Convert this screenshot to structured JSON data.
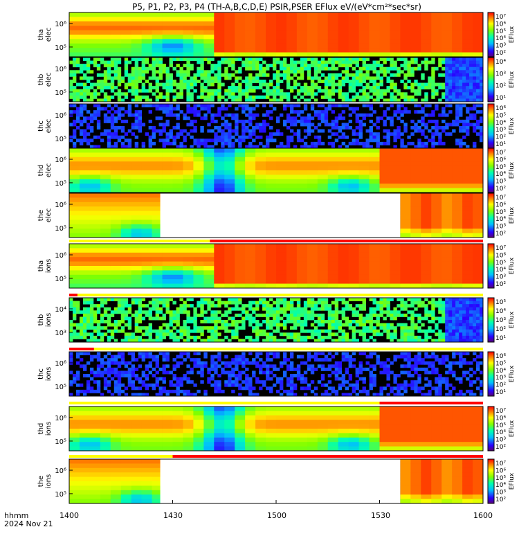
{
  "chart_data": {
    "type": "heatmap",
    "title": "P5, P1, P2, P3, P4 (TH-A,B,C,D,E) PSIR,PSER EFlux eV/(eV*cm²*sec*sr)",
    "x_ticks": [
      "1400",
      "1430",
      "1500",
      "1530",
      "1600"
    ],
    "x_label_line1": "hhmm",
    "x_label_line2": "2024 Nov 21",
    "colorbar_label": "EFlux",
    "panels": [
      {
        "id": "tha-elec",
        "label1": "tha",
        "label2": "elec",
        "y_ticks": [
          "10⁶",
          "10⁵"
        ],
        "cb_ticks": [
          "10⁷",
          "10⁶",
          "10⁵",
          "10⁴",
          "10³",
          "10²"
        ],
        "pattern": "smooth-left-sat-right",
        "gap": null,
        "split": 0.34
      },
      {
        "id": "thb-elec",
        "label1": "thb",
        "label2": "elec",
        "y_ticks": [
          "10⁶",
          "10⁵"
        ],
        "cb_ticks": [
          "10⁴",
          "10³",
          "10²",
          "10¹"
        ],
        "pattern": "noise-cyan",
        "gap": null,
        "split": 0.91
      },
      {
        "id": "thc-elec",
        "label1": "thc",
        "label2": "elec",
        "y_ticks": [
          "10⁶",
          "10⁵"
        ],
        "cb_ticks": [
          "10⁶",
          "10⁵",
          "10⁴",
          "10³",
          "10²",
          "10¹"
        ],
        "pattern": "noise-purple",
        "gap": null,
        "split": 1.0
      },
      {
        "id": "thd-elec",
        "label1": "thd",
        "label2": "elec",
        "y_ticks": [
          "10⁶",
          "10⁵"
        ],
        "cb_ticks": [
          "10⁷",
          "10⁶",
          "10⁵",
          "10⁴",
          "10³",
          "10²"
        ],
        "pattern": "smooth-bubble",
        "gap": null,
        "split": 0.75
      },
      {
        "id": "the-elec",
        "label1": "the",
        "label2": "elec",
        "y_ticks": [
          "10⁶",
          "10⁵"
        ],
        "cb_ticks": [
          "10⁷",
          "10⁶",
          "10⁵",
          "10⁴",
          "10³",
          "10²"
        ],
        "pattern": "smooth-gap",
        "gap": [
          0.22,
          0.8
        ],
        "split": 0.8
      },
      {
        "id": "tha-ions",
        "label1": "tha",
        "label2": "ions",
        "y_ticks": [
          "10⁶",
          "10⁵"
        ],
        "cb_ticks": [
          "10⁷",
          "10⁶",
          "10⁵",
          "10⁴",
          "10³",
          "10²"
        ],
        "pattern": "smooth-left-sat-right",
        "gap": null,
        "split": 0.34
      },
      {
        "id": "thb-ions",
        "label1": "thb",
        "label2": "ions",
        "y_ticks": [
          "10⁴",
          "10³"
        ],
        "cb_ticks": [
          "10⁵",
          "10⁴",
          "10³",
          "10²",
          "10¹"
        ],
        "pattern": "noise-cyan",
        "gap": null,
        "split": 0.91
      },
      {
        "id": "thc-ions",
        "label1": "thc",
        "label2": "ions",
        "y_ticks": [
          "10⁶",
          "10⁵"
        ],
        "cb_ticks": [
          "10⁶",
          "10⁵",
          "10⁴",
          "10³",
          "10²",
          "10¹"
        ],
        "pattern": "noise-purple",
        "gap": null,
        "split": 1.0
      },
      {
        "id": "thd-ions",
        "label1": "thd",
        "label2": "ions",
        "y_ticks": [
          "10⁶",
          "10⁵"
        ],
        "cb_ticks": [
          "10⁷",
          "10⁶",
          "10⁵",
          "10⁴",
          "10³",
          "10²"
        ],
        "pattern": "smooth-bubble",
        "gap": null,
        "split": 0.75
      },
      {
        "id": "the-ions",
        "label1": "the",
        "label2": "ions",
        "y_ticks": [
          "10⁶",
          "10⁵"
        ],
        "cb_ticks": [
          "10⁷",
          "10⁶",
          "10⁵",
          "10⁴",
          "10³",
          "10²"
        ],
        "pattern": "smooth-gap",
        "gap": [
          0.22,
          0.8
        ],
        "split": 0.8
      }
    ],
    "mode_bars": [
      {
        "after_panel": 4,
        "segments": [
          {
            "from": 0.0,
            "to": 0.34,
            "color": "#ffff00"
          },
          {
            "from": 0.34,
            "to": 1.0,
            "color": "#ff0000"
          }
        ]
      },
      {
        "after_panel": 5,
        "segments": [
          {
            "from": 0.0,
            "to": 0.02,
            "color": "#ff0000"
          },
          {
            "from": 0.02,
            "to": 1.0,
            "color": "#ffff00"
          }
        ]
      },
      {
        "after_panel": 6,
        "segments": [
          {
            "from": 0.0,
            "to": 0.06,
            "color": "#ff0000"
          },
          {
            "from": 0.06,
            "to": 1.0,
            "color": "#ffff00"
          }
        ]
      },
      {
        "after_panel": 7,
        "segments": [
          {
            "from": 0.0,
            "to": 0.75,
            "color": "#ffff00"
          },
          {
            "from": 0.75,
            "to": 1.0,
            "color": "#ff0000"
          }
        ]
      },
      {
        "after_panel": 8,
        "segments": [
          {
            "from": 0.0,
            "to": 0.25,
            "color": "#ffff00"
          },
          {
            "from": 0.25,
            "to": 1.0,
            "color": "#ff0000"
          }
        ]
      }
    ]
  }
}
